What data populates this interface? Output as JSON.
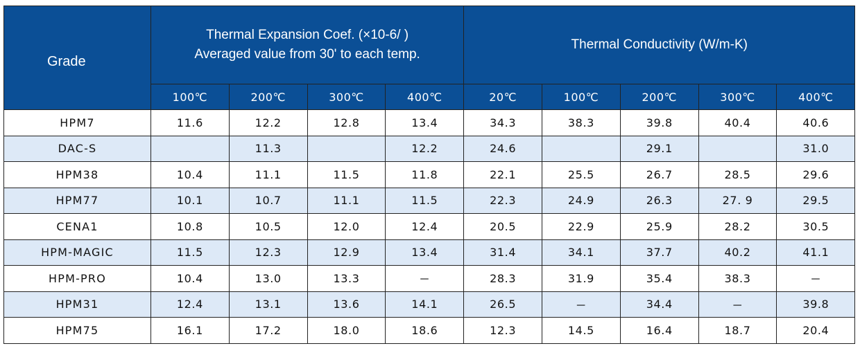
{
  "header": {
    "grade_label": "Grade",
    "thermal_expansion_line1": "Thermal Expansion Coef. (×10-6/ )",
    "thermal_expansion_line2": "Averaged value from 30' to each temp.",
    "thermal_conductivity": "Thermal Conductivity (W/m-K)",
    "expansion_temps": [
      "100℃",
      "200℃",
      "300℃",
      "400℃"
    ],
    "conductivity_temps": [
      "20℃",
      "100℃",
      "200℃",
      "300℃",
      "400℃"
    ]
  },
  "rows": [
    {
      "grade": "HPM7",
      "values": [
        "11.6",
        "12.2",
        "12.8",
        "13.4",
        "34.3",
        "38.3",
        "39.8",
        "40.4",
        "40.6"
      ]
    },
    {
      "grade": "DAC-S",
      "values": [
        "",
        "11.3",
        "",
        "12.2",
        "24.6",
        "",
        "29.1",
        "",
        "31.0"
      ]
    },
    {
      "grade": "HPM38",
      "values": [
        "10.4",
        "11.1",
        "11.5",
        "11.8",
        "22.1",
        "25.5",
        "26.7",
        "28.5",
        "29.6"
      ]
    },
    {
      "grade": "HPM77",
      "values": [
        "10.1",
        "10.7",
        "11.1",
        "11.5",
        "22.3",
        "24.9",
        "26.3",
        "27. 9",
        "29.5"
      ]
    },
    {
      "grade": "CENA1",
      "values": [
        "10.8",
        "10.5",
        "12.0",
        "12.4",
        "20.5",
        "22.9",
        "25.9",
        "28.2",
        "30.5"
      ]
    },
    {
      "grade": "HPM-MAGIC",
      "values": [
        "11.5",
        "12.3",
        "12.9",
        "13.4",
        "31.4",
        "34.1",
        "37.7",
        "40.2",
        "41.1"
      ]
    },
    {
      "grade": "HPM-PRO",
      "values": [
        "10.4",
        "13.0",
        "13.3",
        "－",
        "28.3",
        "31.9",
        "35.4",
        "38.3",
        "－"
      ]
    },
    {
      "grade": "HPM31",
      "values": [
        "12.4",
        "13.1",
        "13.6",
        "14.1",
        "26.5",
        "－",
        "34.4",
        "－",
        "39.8"
      ]
    },
    {
      "grade": "HPM75",
      "values": [
        "16.1",
        "17.2",
        "18.0",
        "18.6",
        "12.3",
        "14.5",
        "16.4",
        "18.7",
        "20.4"
      ]
    }
  ],
  "colors": {
    "header_bg": "#0b4f96",
    "alt_row_bg": "#dde9f7"
  }
}
